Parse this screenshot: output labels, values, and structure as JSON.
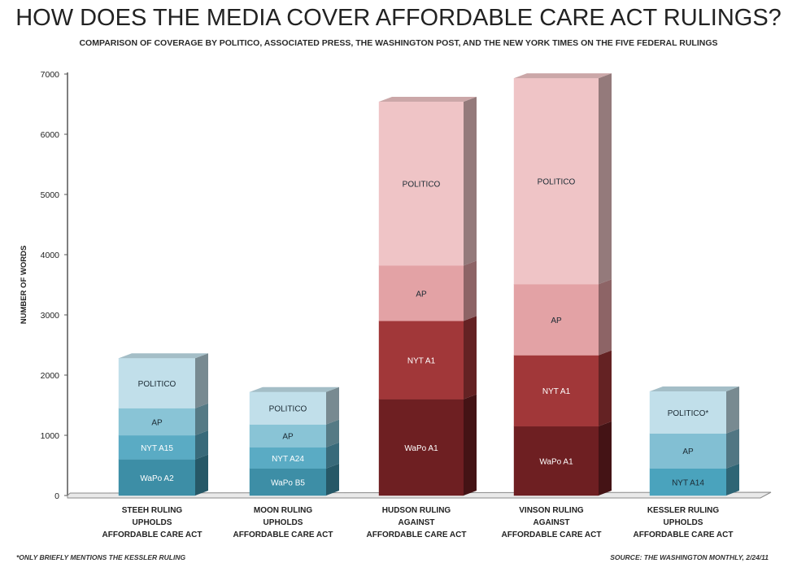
{
  "title": "HOW DOES THE MEDIA COVER AFFORDABLE CARE ACT RULINGS?",
  "subtitle": "COMPARISON OF COVERAGE BY POLITICO, ASSOCIATED PRESS, THE WASHINGTON POST, AND THE NEW YORK TIMES ON THE FIVE FEDERAL RULINGS",
  "footnote": "*ONLY BRIEFLY MENTIONS THE KESSLER RULING",
  "source": "SOURCE: THE WASHINGTON MONTHLY, 2/24/11",
  "chart_data": {
    "type": "bar",
    "stacked": true,
    "style": "3d",
    "ylabel": "NUMBER OF WORDS",
    "ylim": [
      0,
      7000
    ],
    "yticks": [
      "0",
      "1000",
      "2000",
      "3000",
      "4000",
      "5000",
      "6000",
      "7000"
    ],
    "categories": [
      [
        "STEEH RULING",
        "UPHOLDS",
        "AFFORDABLE CARE ACT"
      ],
      [
        "MOON RULING",
        "UPHOLDS",
        "AFFORDABLE CARE ACT"
      ],
      [
        "HUDSON RULING",
        "AGAINST",
        "AFFORDABLE CARE ACT"
      ],
      [
        "VINSON RULING",
        "AGAINST",
        "AFFORDABLE CARE ACT"
      ],
      [
        "KESSLER RULING",
        "UPHOLDS",
        "AFFORDABLE CARE ACT"
      ]
    ],
    "bars": [
      {
        "palette": "blue",
        "segments": [
          {
            "label": "WaPo  A2",
            "value": 600
          },
          {
            "label": "NYT  A15",
            "value": 400
          },
          {
            "label": "AP",
            "value": 450
          },
          {
            "label": "POLITICO",
            "value": 830
          }
        ]
      },
      {
        "palette": "blue",
        "segments": [
          {
            "label": "WaPo  B5",
            "value": 450
          },
          {
            "label": "NYT  A24",
            "value": 350
          },
          {
            "label": "AP",
            "value": 380
          },
          {
            "label": "POLITICO",
            "value": 540
          }
        ]
      },
      {
        "palette": "red",
        "segments": [
          {
            "label": "WaPo A1",
            "value": 1600
          },
          {
            "label": "NYT  A1",
            "value": 1300
          },
          {
            "label": "AP",
            "value": 920
          },
          {
            "label": "POLITICO",
            "value": 2720
          }
        ]
      },
      {
        "palette": "red",
        "segments": [
          {
            "label": "WaPo A1",
            "value": 1150
          },
          {
            "label": "NYT  A1",
            "value": 1180
          },
          {
            "label": "AP",
            "value": 1180
          },
          {
            "label": "POLITICO",
            "value": 3420
          }
        ]
      },
      {
        "palette": "blue",
        "segments": [
          {
            "label": "NYT  A14",
            "value": 450
          },
          {
            "label": "AP",
            "value": 580
          },
          {
            "label": "POLITICO*",
            "value": 700
          }
        ]
      }
    ],
    "colors": {
      "blue": [
        "#3d8ea6",
        "#5aabc4",
        "#89c4d6",
        "#c1dfea"
      ],
      "red": [
        "#6e1f22",
        "#a13739",
        "#e3a2a5",
        "#efc4c6"
      ],
      "blue_light_first": [
        "#4aa3bd",
        "#82bfd3",
        "#c1dfea"
      ],
      "axis": "#555555"
    }
  }
}
